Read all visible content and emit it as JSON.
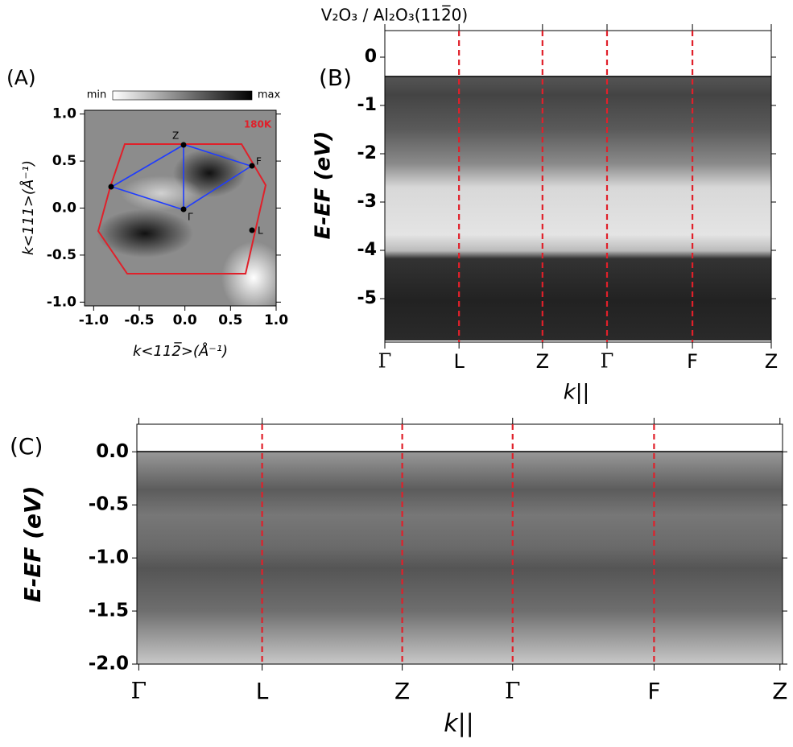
{
  "chart_data": [
    {
      "type": "heatmap",
      "panel_label": "(A)",
      "colorbar_labels": [
        "min",
        "max"
      ],
      "annotation": "180K",
      "point_labels": [
        "Z",
        "F",
        "Γ",
        "L"
      ],
      "xlabel": "k<112̅>(Å⁻¹)",
      "ylabel": "k<111>(Å⁻¹)",
      "xlim": [
        -1.1,
        1.0
      ],
      "ylim": [
        -1.04,
        1.04
      ],
      "xticks": [
        {
          "value": -1,
          "label": "-1.0"
        },
        -0.5,
        {
          "value": 0,
          "label": "0.0"
        },
        0.5,
        {
          "value": 1,
          "label": "1.0"
        }
      ],
      "yticks": [
        {
          "value": 1,
          "label": "1.0"
        },
        0.5,
        {
          "value": 0,
          "label": "0.0"
        },
        -0.5,
        {
          "value": -1,
          "label": "-1.0"
        }
      ]
    },
    {
      "type": "heatmap",
      "panel_label": "(B)",
      "title": "V₂O₃ / Al₂O₃(112̅0)",
      "categories": [
        "Γ",
        "L",
        "Z",
        "Γ",
        "F",
        "Z"
      ],
      "xlabel": "k||",
      "ylabel": "E-EF (eV)",
      "ylim": [
        -5.9,
        0.55
      ],
      "yticks": [
        0,
        -1,
        -2,
        -3,
        -4,
        -5
      ]
    },
    {
      "type": "heatmap",
      "panel_label": "(C)",
      "categories": [
        "Γ",
        "L",
        "Z",
        "Γ",
        "F",
        "Z"
      ],
      "xlabel": "k||",
      "ylabel": "E-EF (eV)",
      "ylim": [
        -2.0,
        0.26
      ],
      "yticks": [
        {
          "value": 0,
          "label": "0.0"
        },
        -0.5,
        {
          "value": -1,
          "label": "-1.0"
        },
        -1.5,
        {
          "value": -2,
          "label": "-2.0"
        }
      ]
    }
  ]
}
